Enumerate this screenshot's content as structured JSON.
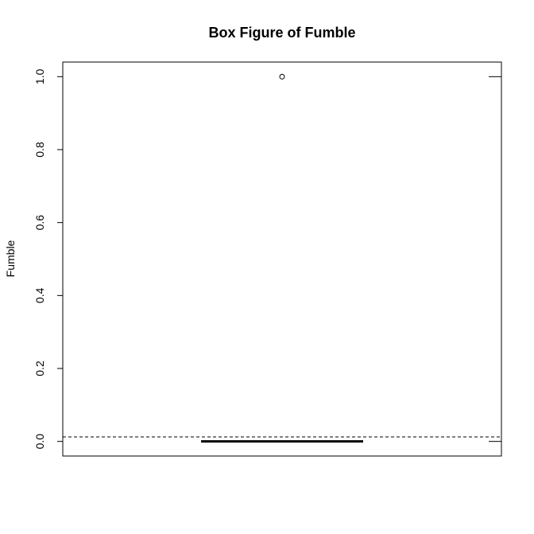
{
  "chart_data": {
    "type": "box",
    "title": "Box Figure of Fumble",
    "ylabel": "Fumble",
    "xlabel": "",
    "ylim": [
      -0.04,
      1.04
    ],
    "yticks": [
      0.0,
      0.2,
      0.4,
      0.6,
      0.8,
      1.0
    ],
    "ytick_labels": [
      "0.0",
      "0.2",
      "0.4",
      "0.6",
      "0.8",
      "1.0"
    ],
    "box": {
      "min": 0.0,
      "q1": 0.0,
      "median": 0.0,
      "q3": 0.0,
      "max": 0.0
    },
    "outliers": [
      1.0
    ],
    "reference_line": {
      "value": 0.0125,
      "style": "dashed"
    },
    "right_ticks": [
      0.0,
      1.0
    ],
    "grid": false
  }
}
